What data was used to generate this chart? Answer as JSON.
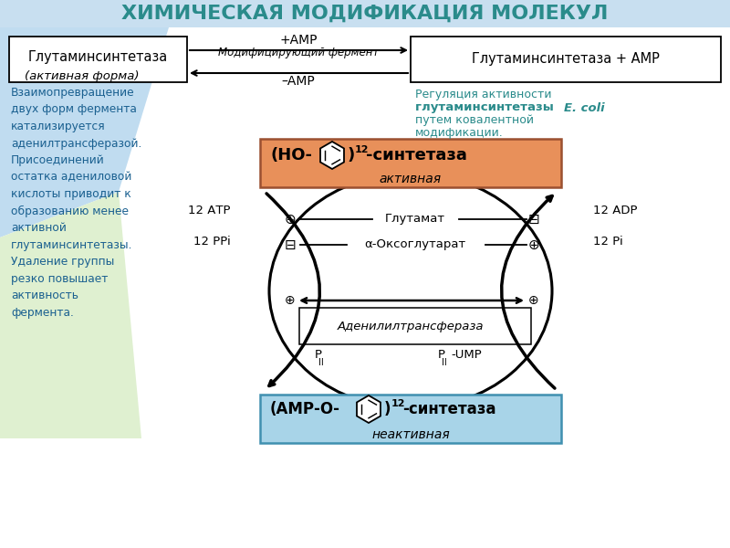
{
  "title": "ХИМИЧЕСКАЯ МОДИФИКАЦИЯ МОЛЕКУЛ",
  "title_color": "#2A8B8B",
  "bg_top_color": "#C8DFF0",
  "left_box_label": "Глутаминсинтетаза",
  "left_box_sublabel": "(активная форма)",
  "right_box_label": "Глутаминсинтетаза + АМР",
  "arrow_plus_amp": "+АМР",
  "arrow_modifier": "Модифицирующий фермент",
  "arrow_minus_amp": "–АМР",
  "reg_line1": "Регуляция активности",
  "reg_line2a": "глутаминсинтетазы ",
  "reg_line2b": "E. coli",
  "reg_line3": "путем ковалентной",
  "reg_line4": "модификации.",
  "left_paragraph": "Взаимопревращение\nдвух форм фермента\nкатализируется\nаденилтрансферазой.\nПрисоединений\nостатка адениловой\nкислоты приводит к\nобразованию менее\nактивной\nглутаминсинтетазы.\nУдаление группы\nрезко повышает\nактивность\nфермента.",
  "top_enzyme_color": "#E8905A",
  "bot_enzyme_color": "#A8D4E8",
  "top_enzyme_active": "активная",
  "bot_enzyme_inactive": "неактивная",
  "glutamat": "Глутамат",
  "oxoglutarat": "α-Оксоглутарат",
  "adenyl": "Аденилилтрансфераза",
  "p2": "P",
  "p2sub": "II",
  "p2ump": "P",
  "p2umpsub": "II",
  "p2umpsuffix": "-UMP",
  "atp": "12 АТР",
  "ppi": "12 PPi",
  "adp": "12 ADP",
  "pi": "12 Pi",
  "teal_color": "#2A8B8B",
  "left_text_color": "#1a6090"
}
